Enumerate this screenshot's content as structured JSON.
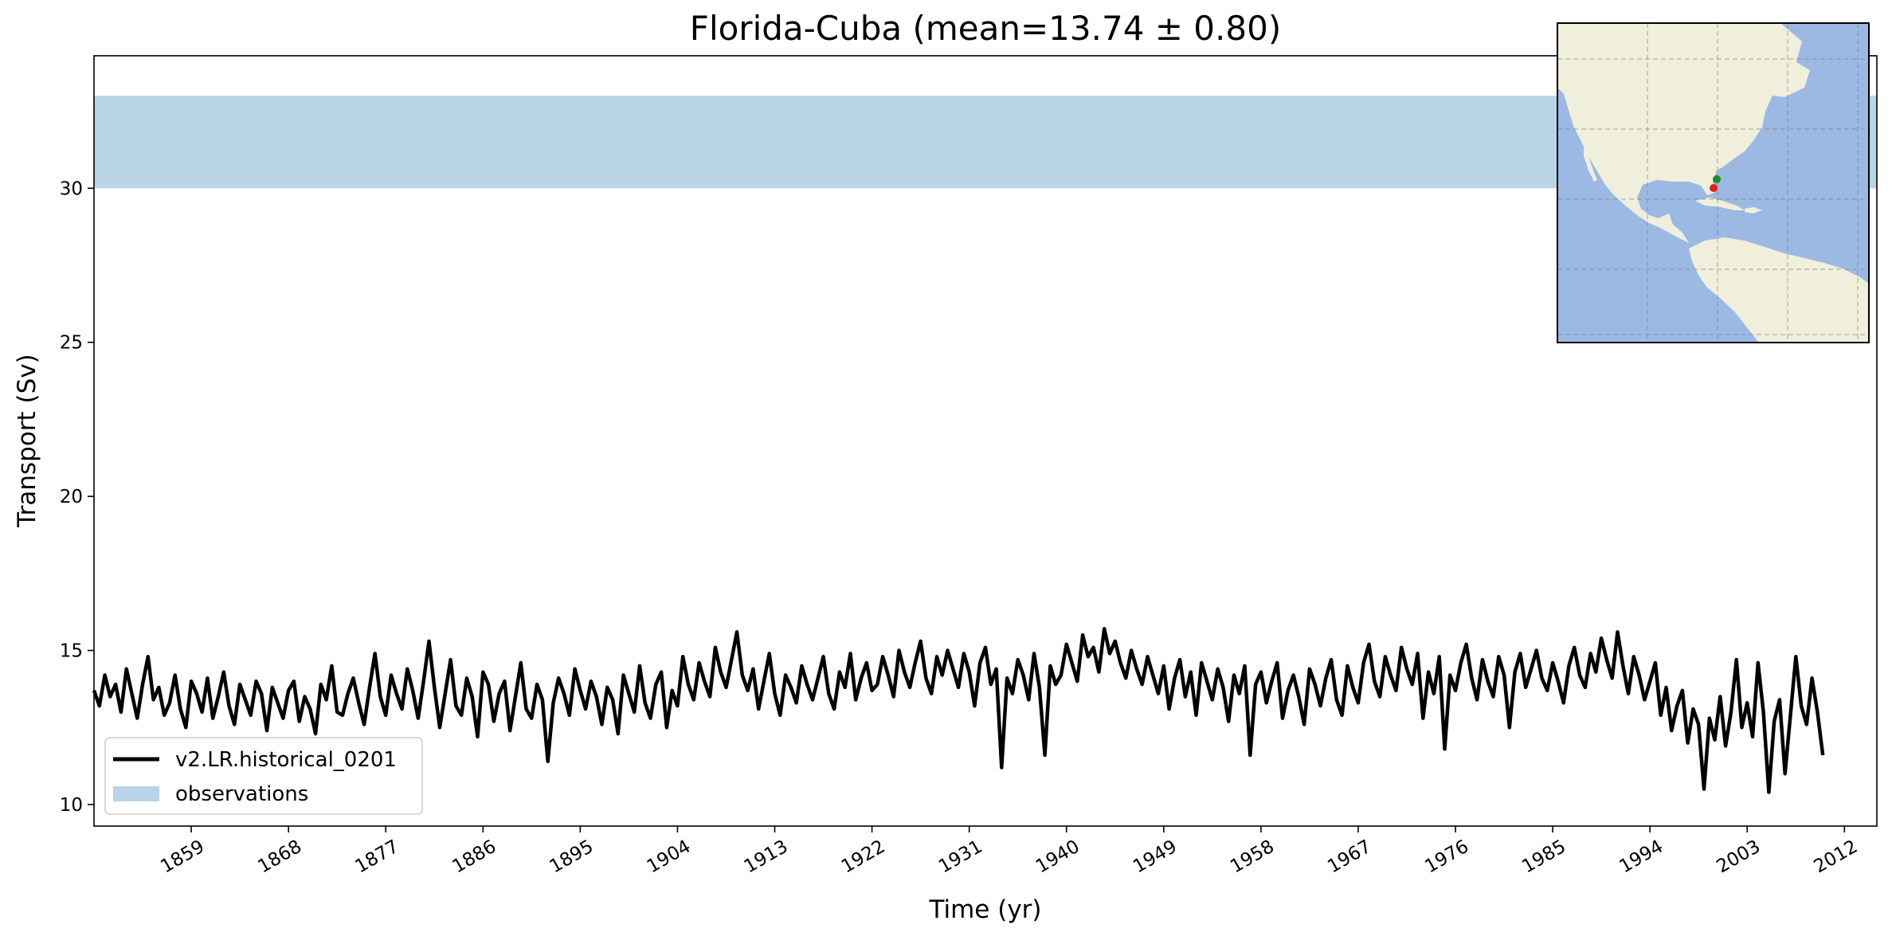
{
  "chart_data": {
    "type": "line",
    "title": "Florida-Cuba (mean=13.74 ± 0.80)",
    "xlabel": "Time (yr)",
    "ylabel": "Transport (Sv)",
    "xlim": [
      1850,
      2015
    ],
    "ylim": [
      9.3,
      34.3
    ],
    "x_ticks": [
      1859,
      1868,
      1877,
      1886,
      1895,
      1904,
      1913,
      1922,
      1931,
      1940,
      1949,
      1958,
      1967,
      1976,
      1985,
      1994,
      2003,
      2012
    ],
    "y_ticks": [
      10,
      15,
      20,
      25,
      30
    ],
    "grid": false,
    "legend_position": "lower-left",
    "colors": {
      "line": "#000000",
      "observations": "#b9d4e7",
      "land": "#efefdc",
      "ocean": "#9bb9e3",
      "marker_green": "#1f8a2e",
      "marker_red": "#e0201b"
    },
    "series": [
      {
        "name": "v2.LR.historical_0201",
        "kind": "line",
        "color": "#000000",
        "x_start": 1850,
        "x_step": 0.5,
        "values": [
          13.7,
          13.2,
          14.2,
          13.5,
          13.9,
          13.0,
          14.4,
          13.6,
          12.8,
          13.9,
          14.8,
          13.4,
          13.8,
          12.9,
          13.3,
          14.2,
          13.1,
          12.5,
          14.0,
          13.6,
          13.0,
          14.1,
          12.8,
          13.5,
          14.3,
          13.2,
          12.6,
          13.9,
          13.4,
          12.9,
          14.0,
          13.6,
          12.4,
          13.8,
          13.3,
          12.8,
          13.7,
          14.0,
          12.7,
          13.5,
          13.1,
          12.3,
          13.9,
          13.4,
          14.5,
          13.0,
          12.9,
          13.6,
          14.1,
          13.3,
          12.6,
          13.8,
          14.9,
          13.5,
          12.9,
          14.2,
          13.6,
          13.1,
          14.4,
          13.7,
          12.8,
          14.0,
          15.3,
          13.8,
          12.5,
          13.6,
          14.7,
          13.2,
          12.9,
          14.1,
          13.5,
          12.2,
          14.3,
          13.9,
          12.7,
          13.6,
          14.0,
          12.4,
          13.5,
          14.6,
          13.1,
          12.8,
          13.9,
          13.4,
          11.4,
          13.3,
          14.1,
          13.6,
          12.9,
          14.4,
          13.7,
          13.1,
          14.0,
          13.5,
          12.6,
          13.8,
          13.4,
          12.3,
          14.2,
          13.6,
          13.0,
          14.5,
          13.3,
          12.8,
          13.9,
          14.3,
          12.5,
          13.7,
          13.2,
          14.8,
          13.9,
          13.4,
          14.6,
          14.0,
          13.5,
          15.1,
          14.3,
          13.8,
          14.7,
          15.6,
          14.2,
          13.7,
          14.4,
          13.1,
          14.0,
          14.9,
          13.6,
          12.9,
          14.2,
          13.8,
          13.3,
          14.5,
          13.9,
          13.4,
          14.1,
          14.8,
          13.6,
          13.1,
          14.3,
          13.8,
          14.9,
          13.4,
          14.1,
          14.6,
          13.7,
          13.9,
          14.8,
          14.2,
          13.5,
          15.0,
          14.3,
          13.8,
          14.6,
          15.3,
          14.1,
          13.6,
          14.8,
          14.2,
          15.0,
          14.4,
          13.8,
          14.9,
          14.3,
          13.2,
          14.6,
          15.1,
          13.9,
          14.4,
          11.2,
          14.1,
          13.6,
          14.7,
          14.2,
          13.4,
          14.9,
          13.8,
          11.6,
          14.5,
          13.9,
          14.2,
          15.2,
          14.6,
          14.0,
          15.5,
          14.8,
          15.1,
          14.3,
          15.7,
          14.9,
          15.3,
          14.6,
          14.1,
          15.0,
          14.4,
          13.9,
          14.8,
          14.2,
          13.6,
          14.5,
          13.1,
          14.1,
          14.7,
          13.5,
          14.3,
          12.9,
          14.6,
          14.0,
          13.4,
          14.4,
          13.8,
          12.7,
          14.2,
          13.6,
          14.5,
          11.6,
          13.9,
          14.3,
          13.3,
          14.0,
          14.6,
          12.8,
          13.7,
          14.2,
          13.5,
          12.6,
          14.4,
          13.9,
          13.2,
          14.1,
          14.7,
          13.4,
          12.9,
          14.5,
          13.8,
          13.3,
          14.6,
          15.2,
          14.0,
          13.5,
          14.8,
          14.2,
          13.7,
          15.1,
          14.4,
          13.9,
          14.9,
          12.8,
          14.3,
          13.6,
          14.8,
          11.8,
          14.2,
          13.7,
          14.6,
          15.2,
          14.1,
          13.4,
          14.7,
          14.0,
          13.5,
          14.8,
          14.2,
          12.5,
          14.3,
          14.9,
          13.8,
          14.4,
          15.0,
          14.1,
          13.7,
          14.6,
          14.0,
          13.3,
          14.5,
          15.1,
          14.2,
          13.8,
          14.9,
          14.3,
          15.4,
          14.7,
          14.1,
          15.6,
          14.5,
          13.6,
          14.8,
          14.2,
          13.4,
          14.0,
          14.6,
          12.9,
          13.8,
          12.4,
          13.2,
          13.7,
          12.0,
          13.1,
          12.6,
          10.5,
          12.8,
          12.1,
          13.5,
          11.9,
          13.0,
          14.7,
          12.5,
          13.3,
          12.2,
          14.6,
          13.0,
          10.4,
          12.7,
          13.4,
          11.0,
          12.9,
          14.8,
          13.2,
          12.6,
          14.1,
          13.0,
          11.6
        ]
      },
      {
        "name": "observations",
        "kind": "band",
        "color": "#b9d4e7",
        "y_range": [
          30,
          33
        ]
      }
    ],
    "legend": [
      {
        "label": "v2.LR.historical_0201",
        "kind": "line"
      },
      {
        "label": "observations",
        "kind": "patch"
      }
    ],
    "inset_map": {
      "markers": [
        {
          "color": "green"
        },
        {
          "color": "red"
        }
      ]
    }
  }
}
